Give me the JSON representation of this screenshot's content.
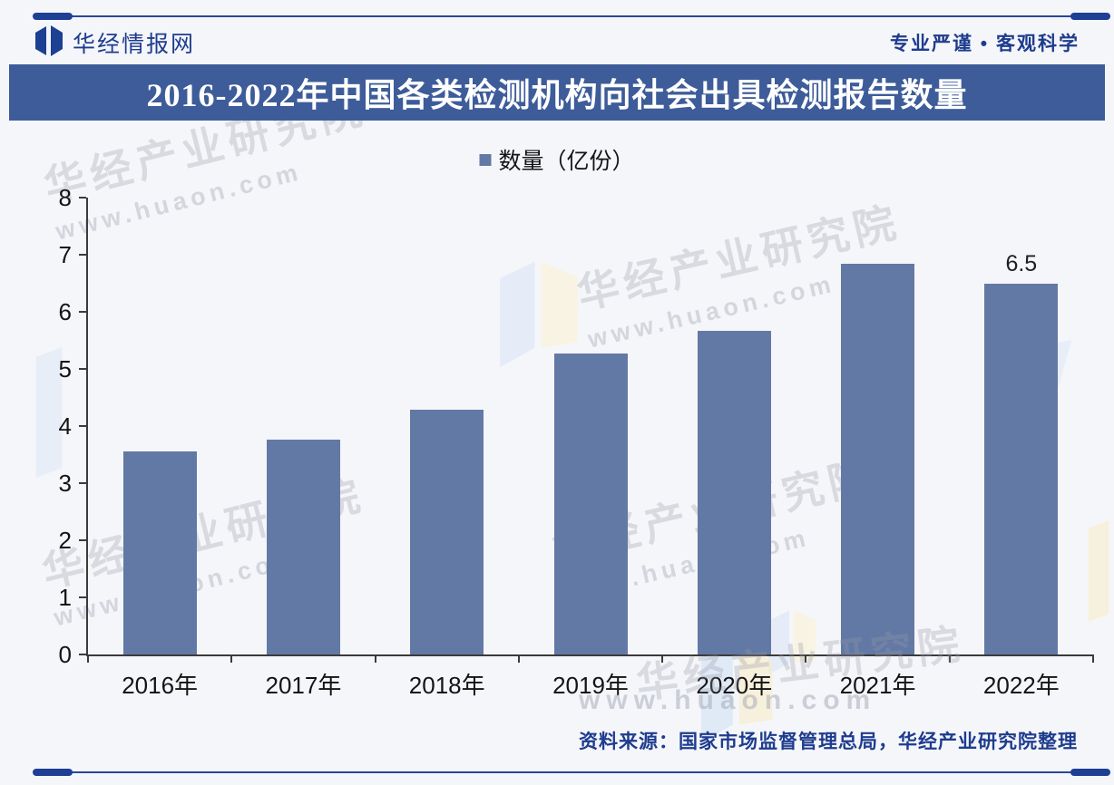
{
  "header": {
    "brand": "华经情报网",
    "tagline": "专业严谨 • 客观科学",
    "logo_icon": "open-book-logo"
  },
  "title": "2016-2022年中国各类检测机构向社会出具检测报告数量",
  "legend": {
    "label": "数量（亿份）",
    "marker_color": "#6379a5"
  },
  "chart_data": {
    "type": "bar",
    "title": "2016-2022年中国各类检测机构向社会出具检测报告数量",
    "categories": [
      "2016年",
      "2017年",
      "2018年",
      "2019年",
      "2020年",
      "2021年",
      "2022年"
    ],
    "values": [
      3.56,
      3.76,
      4.28,
      5.27,
      5.67,
      6.84,
      6.5
    ],
    "series_name": "数量（亿份）",
    "ylabel": "",
    "xlabel": "",
    "ylim": [
      0,
      8
    ],
    "yticks": [
      0,
      1,
      2,
      3,
      4,
      5,
      6,
      7,
      8
    ],
    "grid": false,
    "legend_position": "top",
    "bar_color": "#6379a5",
    "annotations": [
      {
        "category": "2022年",
        "text": "6.5"
      }
    ]
  },
  "watermark": {
    "line1": "华经产业研究院",
    "line2": "www.huaon.com"
  },
  "footer": {
    "source": "资料来源：国家市场监督管理总局，华经产业研究院整理"
  },
  "colors": {
    "accent_navy": "#1d3f94",
    "banner_bg": "#3d5c99",
    "bar": "#6379a5",
    "axis": "#3b3b3b"
  }
}
